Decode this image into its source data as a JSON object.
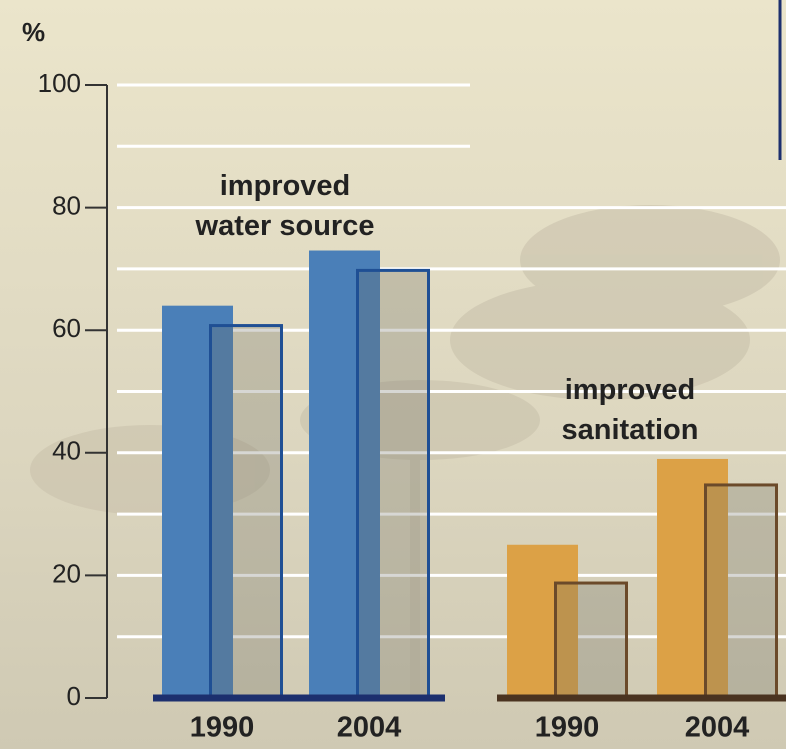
{
  "chart_data": {
    "type": "bar",
    "y_label": "%",
    "ylim": [
      0,
      100
    ],
    "yticks": [
      0,
      20,
      40,
      60,
      80,
      100
    ],
    "minor_yticks": [
      10,
      30,
      50,
      70,
      90
    ],
    "grid": true,
    "groups": [
      {
        "title": "improved water source",
        "axis_color": "#1c2f6e",
        "categories": [
          "1990",
          "2004"
        ],
        "series": [
          {
            "color": "#4a7fb8",
            "style": "filled",
            "values": [
              64,
              73
            ]
          },
          {
            "color": "#1f4f94",
            "style": "outline",
            "values": [
              61,
              70
            ]
          }
        ]
      },
      {
        "title": "improved sanitation",
        "axis_color": "#4a3320",
        "categories": [
          "1990",
          "2004"
        ],
        "series": [
          {
            "color": "#dca146",
            "style": "filled",
            "values": [
              25,
              39
            ]
          },
          {
            "color": "#6b4a2a",
            "style": "outline",
            "values": [
              19,
              35
            ]
          }
        ]
      }
    ]
  }
}
